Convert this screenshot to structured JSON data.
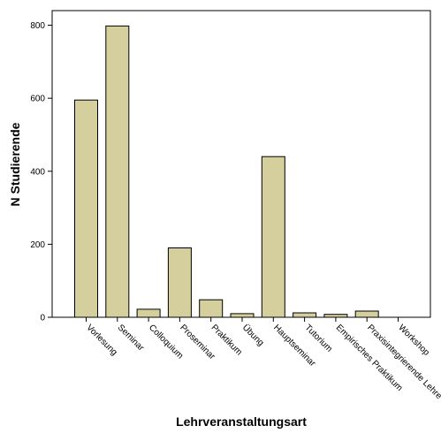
{
  "chart_data": {
    "type": "bar",
    "xlabel": "Lehrveranstaltungsart",
    "ylabel": "N Studierende",
    "categories": [
      "Vorlesung",
      "Seminar",
      "Colloquium",
      "Proseminar",
      "Praktikum",
      "Übung",
      "Hauptseminar",
      "Tutorium",
      "Empirisches Praktikum",
      "Praxisintegrierende Lehre",
      "Workshop"
    ],
    "values": [
      595,
      798,
      22,
      190,
      48,
      10,
      440,
      12,
      8,
      17,
      0
    ],
    "ylim": [
      0,
      840
    ],
    "yticks": [
      0,
      200,
      400,
      600,
      800
    ],
    "grid": false,
    "legend": "none",
    "colors": {
      "bar_fill": "#d4cf9c",
      "bar_stroke": "#000000",
      "background": "#ffffff"
    }
  }
}
